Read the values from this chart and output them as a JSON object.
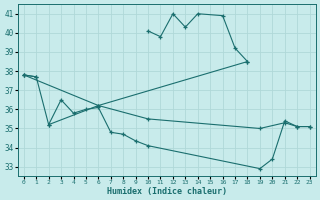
{
  "xlabel": "Humidex (Indice chaleur)",
  "bg_color": "#c8ebeb",
  "grid_color": "#b0d8d8",
  "line_color": "#1a6e6e",
  "xlim": [
    -0.5,
    23.5
  ],
  "ylim": [
    32.5,
    41.5
  ],
  "xtick_labels": [
    "0",
    "1",
    "2",
    "3",
    "4",
    "5",
    "6",
    "7",
    "8",
    "9",
    "10",
    "11",
    "12",
    "13",
    "14",
    "",
    "16",
    "17",
    "18",
    "19",
    "20",
    "21",
    "22",
    "23"
  ],
  "yticks": [
    33,
    34,
    35,
    36,
    37,
    38,
    39,
    40,
    41
  ],
  "curves": [
    {
      "x": [
        10,
        11,
        12,
        13,
        14,
        16,
        17,
        18
      ],
      "y": [
        40.1,
        39.8,
        41.0,
        40.3,
        41.0,
        40.9,
        39.2,
        38.5
      ]
    },
    {
      "x": [
        0,
        6,
        18
      ],
      "y": [
        37.8,
        36.2,
        38.5
      ]
    },
    {
      "x": [
        2,
        6,
        10,
        19,
        21,
        22,
        23
      ],
      "y": [
        35.2,
        36.2,
        35.5,
        35.0,
        35.3,
        35.1,
        35.1
      ]
    },
    {
      "x": [
        0,
        1,
        2,
        3,
        4,
        5,
        6,
        7,
        8,
        9,
        10,
        19,
        20,
        21,
        22,
        23
      ],
      "y": [
        37.8,
        37.7,
        35.2,
        36.5,
        35.8,
        36.0,
        36.1,
        34.8,
        34.7,
        34.35,
        34.1,
        32.9,
        33.4,
        35.4,
        35.1,
        35.1
      ]
    },
    {
      "x": [
        0,
        1
      ],
      "y": [
        37.8,
        37.7
      ]
    }
  ]
}
